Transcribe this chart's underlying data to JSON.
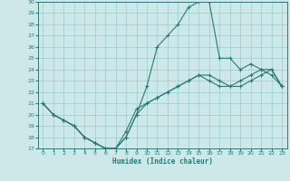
{
  "xlabel": "Humidex (Indice chaleur)",
  "ylabel": "",
  "bg_color": "#cce8e8",
  "grid_color": "#99cccc",
  "line_color": "#2a7a7a",
  "xlim": [
    -0.5,
    23.5
  ],
  "ylim": [
    17,
    30
  ],
  "xticks": [
    0,
    1,
    2,
    3,
    4,
    5,
    6,
    7,
    8,
    9,
    10,
    11,
    12,
    13,
    14,
    15,
    16,
    17,
    18,
    19,
    20,
    21,
    22,
    23
  ],
  "yticks": [
    17,
    18,
    19,
    20,
    21,
    22,
    23,
    24,
    25,
    26,
    27,
    28,
    29,
    30
  ],
  "line1_x": [
    0,
    1,
    2,
    3,
    4,
    5,
    6,
    7,
    8,
    9,
    10,
    11,
    12,
    13,
    14,
    15,
    16,
    17,
    18,
    19,
    20,
    21,
    22,
    23
  ],
  "line1_y": [
    21.0,
    20.0,
    19.5,
    19.0,
    18.0,
    17.5,
    17.0,
    17.0,
    18.0,
    20.0,
    21.0,
    21.5,
    22.0,
    22.5,
    23.0,
    23.5,
    23.5,
    23.0,
    22.5,
    22.5,
    23.0,
    23.5,
    24.0,
    22.5
  ],
  "line2_x": [
    0,
    1,
    2,
    3,
    4,
    5,
    6,
    7,
    8,
    9,
    10,
    11,
    12,
    13,
    14,
    15,
    16,
    17,
    18,
    19,
    20,
    21,
    22,
    23
  ],
  "line2_y": [
    21.0,
    20.0,
    19.5,
    19.0,
    18.0,
    17.5,
    17.0,
    17.0,
    18.0,
    20.0,
    22.5,
    26.0,
    27.0,
    28.0,
    29.5,
    30.0,
    30.0,
    25.0,
    25.0,
    24.0,
    24.5,
    24.0,
    23.5,
    22.5
  ],
  "line3_x": [
    0,
    1,
    2,
    3,
    4,
    5,
    6,
    7,
    8,
    9,
    10,
    11,
    12,
    13,
    14,
    15,
    16,
    17,
    18,
    19,
    20,
    21,
    22,
    23
  ],
  "line3_y": [
    21.0,
    20.0,
    19.5,
    19.0,
    18.0,
    17.5,
    17.0,
    17.0,
    18.5,
    20.5,
    21.0,
    21.5,
    22.0,
    22.5,
    23.0,
    23.5,
    23.0,
    22.5,
    22.5,
    23.0,
    23.5,
    24.0,
    24.0,
    22.5
  ]
}
